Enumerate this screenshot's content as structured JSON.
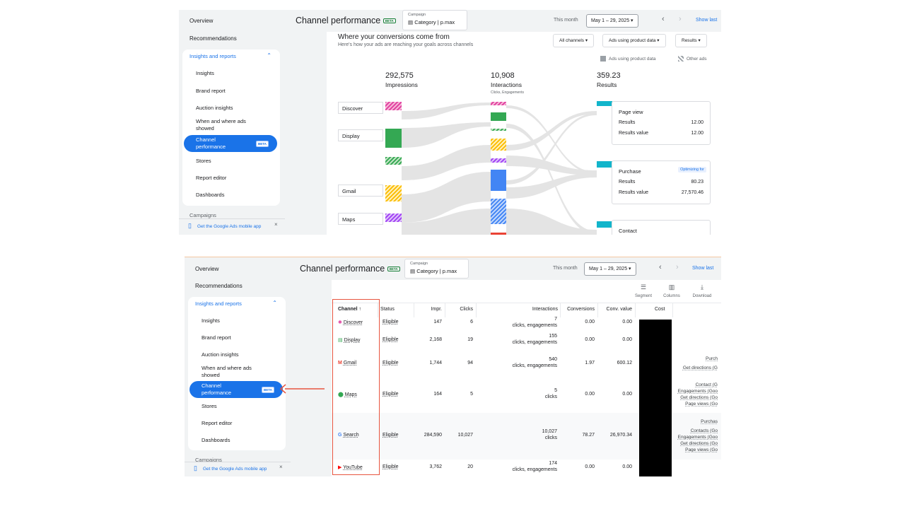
{
  "sidebar": {
    "overview": "Overview",
    "recommendations": "Recommendations",
    "section": "Insights and reports",
    "items": [
      "Insights",
      "Brand report",
      "Auction insights",
      "When and where ads showed",
      "Channel performance",
      "Stores",
      "Report editor",
      "Dashboards"
    ],
    "beta": "BETA",
    "campaigns_cut": "Campaigns",
    "mobile_app": "Get the Google Ads mobile app"
  },
  "header": {
    "title": "Channel performance",
    "beta": "BETA",
    "campaign_label": "Campaign",
    "campaign_value": "Category | p.max",
    "this_month": "This month",
    "date_range": "May 1 – 29, 2025",
    "show_last": "Show last"
  },
  "flow": {
    "title": "Where your conversions come from",
    "subtitle": "Here's how your ads are reaching your goals across channels",
    "filters": [
      "All channels",
      "Ads using product data",
      "Results"
    ],
    "legend": [
      "Ads using product data",
      "Other ads"
    ],
    "impressions": {
      "value": "292,575",
      "label": "Impressions"
    },
    "interactions": {
      "value": "10,908",
      "label": "Interactions",
      "sub": "Clicks, Engagements"
    },
    "results": {
      "value": "359.23",
      "label": "Results"
    },
    "channels": [
      "Discover",
      "Display",
      "Gmail",
      "Maps"
    ],
    "cards": [
      {
        "title": "Page view",
        "results_label": "Results",
        "results": "12.00",
        "value_label": "Results value",
        "value": "12.00"
      },
      {
        "title": "Purchase",
        "badge": "Optimizing for",
        "results_label": "Results",
        "results": "80.23",
        "value_label": "Results value",
        "value": "27,570.46"
      },
      {
        "title": "Contact"
      }
    ]
  },
  "toolbar": {
    "segment": "Segment",
    "columns": "Columns",
    "download": "Download"
  },
  "table": {
    "headers": {
      "channel": "Channel ↑",
      "status": "Status",
      "impr": "Impr.",
      "clicks": "Clicks",
      "interactions": "Interactions",
      "conversions": "Conversions",
      "conv_value": "Conv. value",
      "cost": "Cost"
    },
    "rows": [
      {
        "channel": "Discover",
        "status": "Eligible",
        "impr": "147",
        "clicks": "6",
        "int_value": "7",
        "int_type": "clicks, engagements",
        "conversions": "0.00",
        "conv_value": "0.00",
        "extra": []
      },
      {
        "channel": "Display",
        "status": "Eligible",
        "impr": "2,168",
        "clicks": "19",
        "int_value": "155",
        "int_type": "clicks, engagements",
        "conversions": "0.00",
        "conv_value": "0.00",
        "extra": []
      },
      {
        "channel": "Gmail",
        "status": "Eligible",
        "impr": "1,744",
        "clicks": "94",
        "int_value": "540",
        "int_type": "clicks, engagements",
        "conversions": "1.97",
        "conv_value": "600.12",
        "extra": [
          "Purch",
          "Get directions (G"
        ]
      },
      {
        "channel": "Maps",
        "status": "Eligible",
        "impr": "164",
        "clicks": "5",
        "int_value": "5",
        "int_type": "clicks",
        "conversions": "0.00",
        "conv_value": "0.00",
        "extra": [
          "Contact (G",
          "Engagements (Goo",
          "Get directions (Go",
          "Page views (Go"
        ]
      },
      {
        "channel": "Search",
        "status": "Eligible",
        "impr": "284,590",
        "clicks": "10,027",
        "int_value": "10,027",
        "int_type": "clicks",
        "conversions": "78.27",
        "conv_value": "26,970.34",
        "extra": [
          "Purchas",
          "Contacts (Go",
          "Engagements (Goo",
          "Get directions (Go",
          "Page views (Go"
        ]
      },
      {
        "channel": "YouTube",
        "status": "Eligible",
        "impr": "3,762",
        "clicks": "20",
        "int_value": "174",
        "int_type": "clicks, engagements",
        "conversions": "0.00",
        "conv_value": "0.00",
        "extra": []
      }
    ]
  },
  "colors": {
    "accent": "#1a73e8",
    "highlight": "#e8553f",
    "discover": "#e040a0",
    "display": "#34a853",
    "gmail": "#fbbc04",
    "maps": "#a142f4",
    "interactions": "#4285f4",
    "results": "#12b5cb"
  }
}
